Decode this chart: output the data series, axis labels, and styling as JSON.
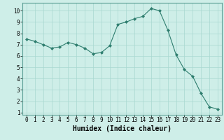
{
  "x": [
    0,
    1,
    2,
    3,
    4,
    5,
    6,
    7,
    8,
    9,
    10,
    11,
    12,
    13,
    14,
    15,
    16,
    17,
    18,
    19,
    20,
    21,
    22,
    23
  ],
  "y": [
    7.5,
    7.3,
    7.0,
    6.7,
    6.8,
    7.2,
    7.0,
    6.7,
    6.2,
    6.3,
    6.9,
    8.8,
    9.0,
    9.3,
    9.5,
    10.2,
    10.0,
    8.3,
    6.1,
    4.8,
    4.2,
    2.7,
    1.5,
    1.3
  ],
  "line_color": "#2e7d6e",
  "marker": "D",
  "marker_size": 2.0,
  "bg_color": "#ceeee8",
  "grid_color": "#a8d8d0",
  "xlabel": "Humidex (Indice chaleur)",
  "xlim": [
    -0.5,
    23.5
  ],
  "ylim": [
    0.8,
    10.7
  ],
  "yticks": [
    1,
    2,
    3,
    4,
    5,
    6,
    7,
    8,
    9,
    10
  ],
  "xticks": [
    0,
    1,
    2,
    3,
    4,
    5,
    6,
    7,
    8,
    9,
    10,
    11,
    12,
    13,
    14,
    15,
    16,
    17,
    18,
    19,
    20,
    21,
    22,
    23
  ],
  "xlabel_fontsize": 7,
  "tick_fontsize": 5.5
}
